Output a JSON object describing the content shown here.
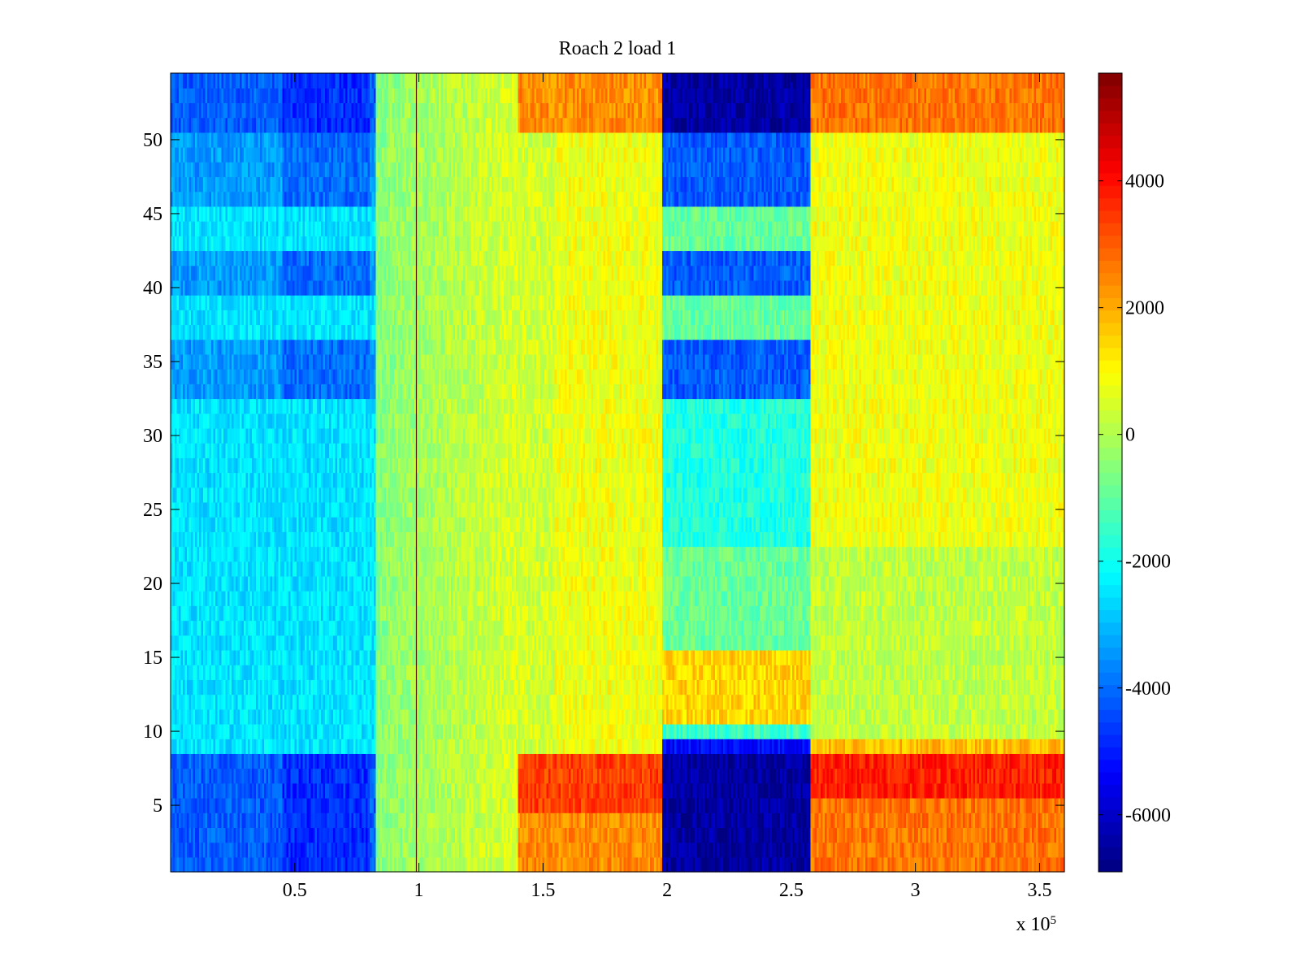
{
  "chart_data": {
    "type": "heatmap",
    "title": "Roach 2 load 1",
    "xlabel": "",
    "ylabel": "",
    "x_multiplier_label": {
      "base": "x 10",
      "exponent": "5"
    },
    "xlim": [
      0,
      3.6
    ],
    "ylim": [
      0.5,
      54.5
    ],
    "x_ticks": [
      0.5,
      1,
      1.5,
      2,
      2.5,
      3,
      3.5
    ],
    "x_tick_labels": [
      "0.5",
      "1",
      "1.5",
      "2",
      "2.5",
      "3",
      "3.5"
    ],
    "y_ticks": [
      5,
      10,
      15,
      20,
      25,
      30,
      35,
      40,
      45,
      50
    ],
    "y_tick_labels": [
      "5",
      "10",
      "15",
      "20",
      "25",
      "30",
      "35",
      "40",
      "45",
      "50"
    ],
    "rows": 54,
    "colormap": "jet",
    "color_range": [
      -6900,
      5700
    ],
    "colorbar_ticks": [
      -6000,
      -4000,
      -2000,
      0,
      2000,
      4000
    ],
    "colorbar_tick_labels": [
      "-6000",
      "-4000",
      "-2000",
      "0",
      "2000",
      "4000"
    ],
    "segments": [
      {
        "x_range": [
          0,
          0.83
        ],
        "typical_value": -2500,
        "dip_rows_value": -4000
      },
      {
        "x_range": [
          0.83,
          1.4
        ],
        "typical_value": -500
      },
      {
        "x_range": [
          1.4,
          1.98
        ],
        "typical_value": 800,
        "strong_rows_value": 2800
      },
      {
        "x_range": [
          1.98,
          2.58
        ],
        "typical_value": -2000,
        "strong_rows_value": -6500,
        "mid_rows_value": 1500
      },
      {
        "x_range": [
          2.58,
          3.6
        ],
        "typical_value": 800,
        "strong_rows_value": 3000
      }
    ],
    "strong_rows": [
      1,
      2,
      3,
      4,
      5,
      6,
      7,
      8,
      51,
      52,
      53,
      54
    ],
    "moderate_rows": [
      33,
      34,
      35,
      36,
      40,
      41,
      42,
      46,
      47,
      48,
      49,
      50
    ],
    "vertical_line_x": 0.99
  }
}
